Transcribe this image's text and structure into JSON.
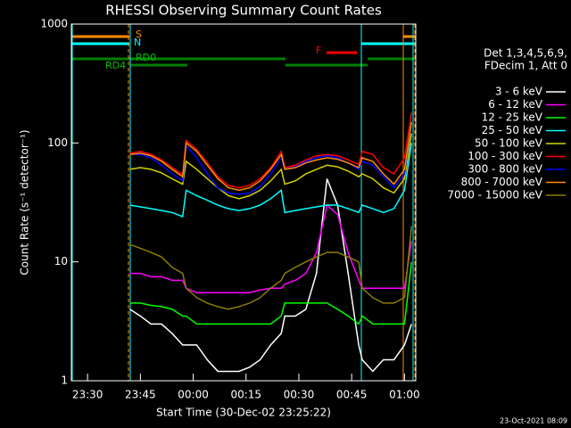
{
  "chart_data": {
    "type": "line",
    "title": "RHESSI Observing Summary Count Rates",
    "xlabel": "Start Time (30-Dec-02 23:25:22)",
    "ylabel": "Count Rate (s⁻¹ detector⁻¹)",
    "legend_header": [
      "Det 1,3,4,5,6,9,",
      "FDecim 1, Att 0"
    ],
    "footer": "23-Oct-2021 08:09",
    "annotations": [
      "S",
      "N",
      "F",
      "RD0",
      "RD4"
    ],
    "log_y": true,
    "xlim": [
      25.4,
      123.2
    ],
    "xticks": [
      {
        "value": 30,
        "label": "23:30"
      },
      {
        "value": 45,
        "label": "23:45"
      },
      {
        "value": 60,
        "label": "00:00"
      },
      {
        "value": 75,
        "label": "00:15"
      },
      {
        "value": 90,
        "label": "00:30"
      },
      {
        "value": 105,
        "label": "00:45"
      },
      {
        "value": 120,
        "label": "01:00"
      }
    ],
    "ylim": [
      1,
      1000
    ],
    "yticks": [
      1,
      10,
      100,
      1000
    ],
    "x": [
      42,
      45,
      48,
      51,
      54,
      57,
      58,
      61,
      64,
      67,
      70,
      73,
      76,
      79,
      82,
      85,
      86,
      89,
      92,
      95,
      98,
      101,
      104,
      107,
      108,
      111,
      114,
      117,
      120,
      122
    ],
    "series": [
      {
        "name": "3 - 6 keV",
        "color": "#ffffff",
        "values": [
          4,
          3.5,
          3,
          3,
          2.5,
          2,
          2,
          2,
          1.5,
          1.2,
          1.2,
          1.2,
          1.3,
          1.5,
          2,
          2.5,
          3.5,
          3.5,
          4,
          8,
          50,
          30,
          8,
          2,
          1.5,
          1.2,
          1.5,
          1.5,
          2,
          3
        ]
      },
      {
        "name": "6 - 12 keV",
        "color": "#ff00ff",
        "values": [
          8,
          8,
          7.5,
          7.5,
          7,
          7,
          6,
          5.5,
          5.5,
          5.5,
          5.5,
          5.5,
          5.5,
          5.8,
          6,
          6,
          6.5,
          7,
          8,
          12,
          30,
          25,
          12,
          7,
          6,
          6,
          6,
          6,
          6,
          15
        ]
      },
      {
        "name": "12 - 25 keV",
        "color": "#00ff00",
        "values": [
          4.5,
          4.5,
          4.3,
          4.2,
          4,
          3.5,
          3.5,
          3,
          3,
          3,
          3,
          3,
          3,
          3,
          3,
          3.5,
          4.5,
          4.5,
          4.5,
          4.5,
          4.5,
          4,
          3.5,
          3,
          3.5,
          3,
          3,
          3,
          3,
          10
        ]
      },
      {
        "name": "25 - 50 keV",
        "color": "#00ffff",
        "values": [
          30,
          29,
          28,
          27,
          26,
          24,
          40,
          36,
          33,
          30,
          28,
          27,
          28,
          30,
          34,
          40,
          26,
          27,
          28,
          29,
          30,
          30,
          28,
          26,
          30,
          28,
          26,
          28,
          40,
          100
        ]
      },
      {
        "name": "50 - 100 keV",
        "color": "#d2d200",
        "values": [
          60,
          62,
          60,
          56,
          50,
          45,
          70,
          60,
          50,
          42,
          36,
          34,
          36,
          40,
          48,
          60,
          45,
          48,
          55,
          60,
          65,
          63,
          58,
          52,
          55,
          50,
          42,
          38,
          50,
          120
        ]
      },
      {
        "name": "100 - 300 keV",
        "color": "#ff0000",
        "values": [
          82,
          85,
          80,
          72,
          62,
          54,
          105,
          88,
          68,
          52,
          44,
          42,
          44,
          50,
          62,
          85,
          62,
          65,
          72,
          78,
          80,
          78,
          72,
          66,
          85,
          80,
          62,
          55,
          75,
          180
        ]
      },
      {
        "name": "300 - 800 keV",
        "color": "#0000ff",
        "values": [
          80,
          80,
          75,
          65,
          55,
          48,
          95,
          75,
          55,
          42,
          38,
          37,
          38,
          43,
          55,
          75,
          60,
          63,
          70,
          75,
          78,
          75,
          68,
          60,
          70,
          65,
          52,
          42,
          55,
          150
        ]
      },
      {
        "name": "800 - 7000 keV",
        "color": "#ff8c00",
        "values": [
          80,
          82,
          78,
          70,
          60,
          52,
          100,
          85,
          65,
          50,
          42,
          40,
          42,
          48,
          60,
          80,
          60,
          62,
          68,
          72,
          75,
          73,
          68,
          62,
          75,
          70,
          55,
          45,
          60,
          150
        ]
      },
      {
        "name": "7000 - 15000 keV",
        "color": "#8b7d00",
        "values": [
          14,
          13,
          12,
          11,
          9,
          8,
          6,
          5,
          4.5,
          4.2,
          4,
          4.2,
          4.5,
          5,
          6,
          7,
          8,
          9,
          10,
          11,
          12,
          12,
          11,
          10,
          6,
          5,
          4.5,
          4.5,
          5,
          20
        ]
      }
    ]
  }
}
